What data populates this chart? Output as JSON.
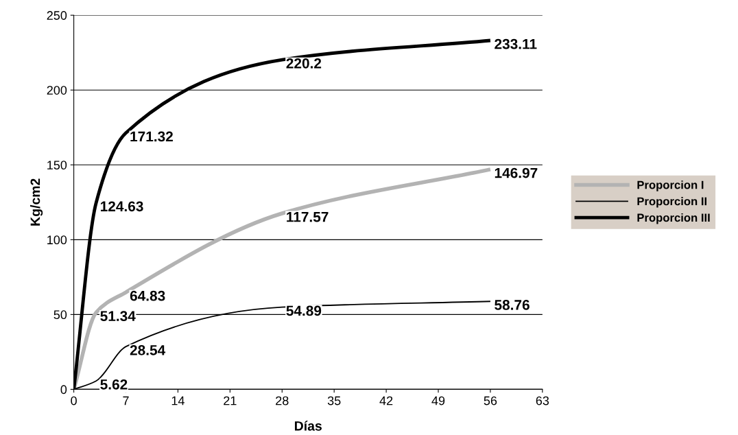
{
  "chart_data": {
    "type": "line",
    "xlabel": "Días",
    "ylabel": "Kg/cm2",
    "x": [
      0,
      3,
      7,
      28,
      56
    ],
    "series": [
      {
        "name": "Proporcion I",
        "color": "#b3b3b3",
        "values": [
          0,
          51.34,
          64.83,
          117.57,
          146.97
        ],
        "value_labels": [
          null,
          "51.34",
          "64.83",
          "117.57",
          "146.97"
        ]
      },
      {
        "name": "Proporcion II",
        "color": "#000000",
        "values": [
          0,
          5.62,
          28.54,
          54.89,
          58.76
        ],
        "value_labels": [
          null,
          "5.62",
          "28.54",
          "54.89",
          "58.76"
        ]
      },
      {
        "name": "Proporcion III",
        "color": "#000000",
        "values": [
          0,
          124.63,
          171.32,
          220.2,
          233.11
        ],
        "value_labels": [
          null,
          "124.63",
          "171.32",
          "220.2",
          "233.11"
        ]
      }
    ],
    "xlim": [
      0,
      63
    ],
    "xticks": [
      0,
      7,
      14,
      21,
      28,
      35,
      42,
      49,
      56,
      63
    ],
    "ylim": [
      0,
      250
    ],
    "yticks": [
      0,
      50,
      100,
      150,
      200,
      250
    ],
    "grid": "y",
    "legend": "right",
    "marker": "none",
    "line_style": "solid"
  }
}
